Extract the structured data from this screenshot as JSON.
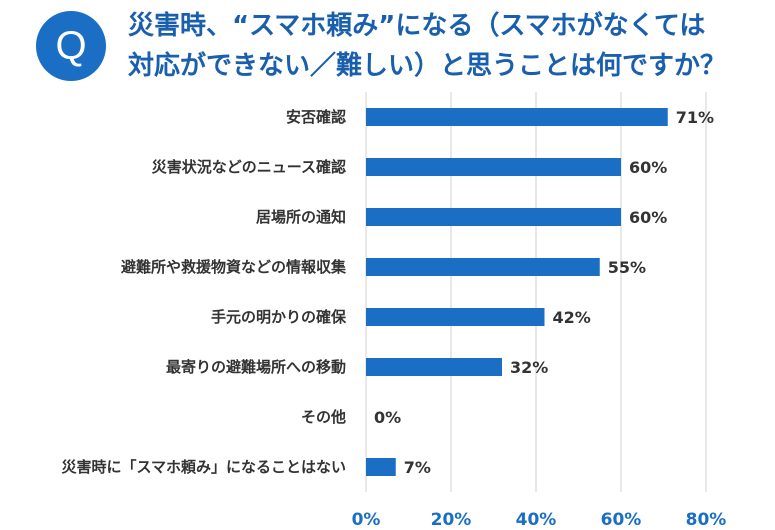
{
  "header": {
    "badge": "Q",
    "title_line1": "災害時、“スマホ頼み”になる（スマホがなくては",
    "title_line2": "対応ができない／難しい）と思うことは何ですか？"
  },
  "colors": {
    "bar": "#1a6fc4",
    "grid": "#d0d0d0",
    "accent": "#1a6fc4"
  },
  "chart_data": {
    "type": "bar",
    "orientation": "horizontal",
    "categories": [
      "安否確認",
      "災害状況などのニュース確認",
      "居場所の通知",
      "避難所や救援物資などの情報収集",
      "手元の明かりの確保",
      "最寄りの避難場所への移動",
      "その他",
      "災害時に「スマホ頼み」になることはない"
    ],
    "values": [
      71,
      60,
      60,
      55,
      42,
      32,
      0,
      7
    ],
    "value_labels": [
      "71%",
      "60%",
      "60%",
      "55%",
      "42%",
      "32%",
      "0%",
      "7%"
    ],
    "xlim": [
      0,
      80
    ],
    "ticks": [
      0,
      20,
      40,
      60,
      80
    ],
    "tick_labels": [
      "0%",
      "20%",
      "40%",
      "60%",
      "80%"
    ],
    "grid": true
  }
}
